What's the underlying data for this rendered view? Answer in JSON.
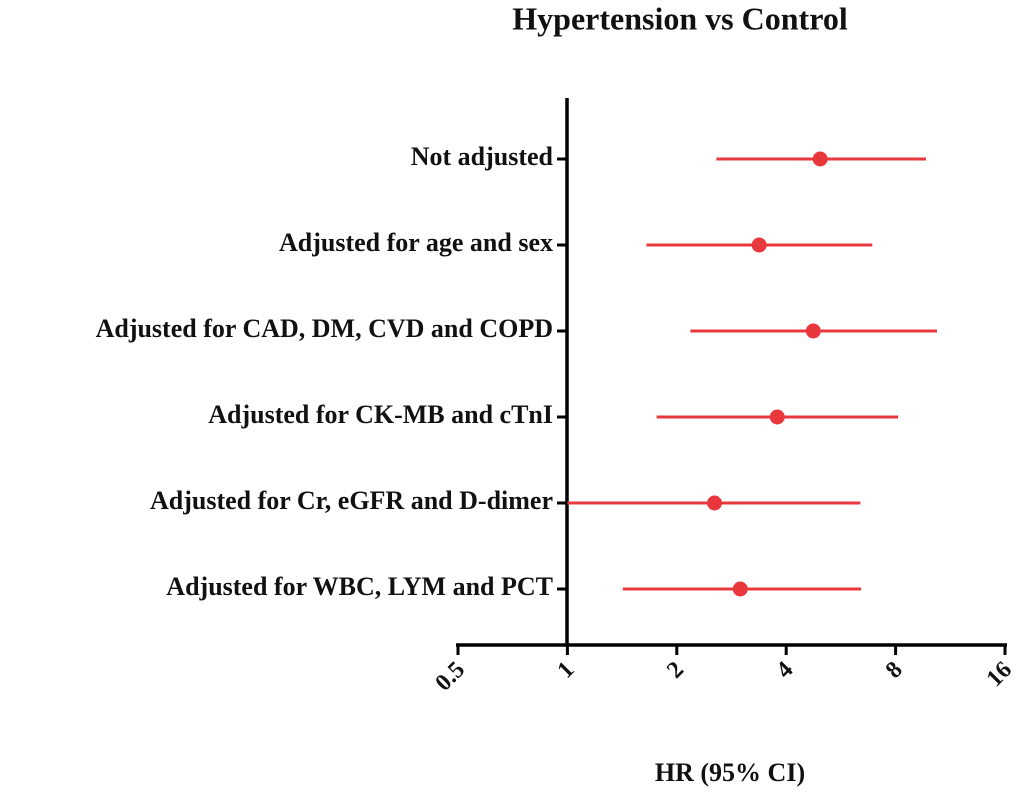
{
  "chart_data": {
    "type": "forest",
    "title": "Hypertension  vs Control",
    "x_label": "HR (95% CI)",
    "categories": [
      "Not adjusted",
      "Adjusted for age and sex",
      "Adjusted for CAD, DM, CVD and COPD",
      "Adjusted for CK-MB and cTnI",
      "Adjusted for Cr, eGFR and D-dimer",
      "Adjusted for WBC, LYM and PCT"
    ],
    "values": [
      4.96,
      3.37,
      4.75,
      3.78,
      2.54,
      2.99
    ],
    "lower": [
      2.57,
      1.65,
      2.18,
      1.76,
      1.0,
      1.42
    ],
    "upper": [
      9.7,
      6.9,
      10.4,
      8.13,
      6.4,
      6.43
    ],
    "color": "#e8383d",
    "xscale": "log",
    "xlim": [
      0.5,
      16
    ],
    "xticks": [
      0.5,
      1,
      2,
      4,
      8,
      16
    ]
  }
}
